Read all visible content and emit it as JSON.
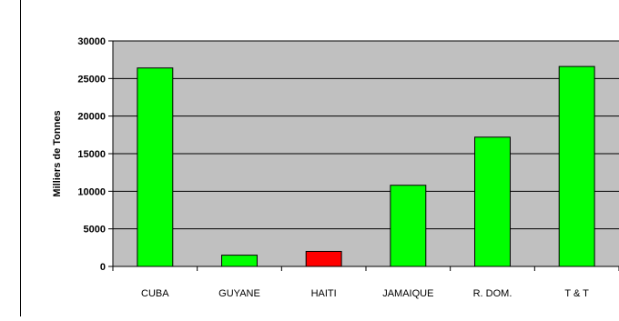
{
  "chart_data": {
    "type": "bar",
    "title": "",
    "xlabel": "",
    "ylabel": "Milliers de Tonnes",
    "categories": [
      "CUBA",
      "GUYANE",
      "HAITI",
      "JAMAIQUE",
      "R. DOM.",
      "T & T"
    ],
    "values": [
      26400,
      1500,
      2000,
      10800,
      17200,
      26600
    ],
    "bar_colors": [
      "#00ff00",
      "#00ff00",
      "#ff0000",
      "#00ff00",
      "#00ff00",
      "#00ff00"
    ],
    "ylim": [
      0,
      30000
    ],
    "yticks": [
      0,
      5000,
      10000,
      15000,
      20000,
      25000,
      30000
    ],
    "grid": true,
    "plot_background": "#c0c0c0",
    "legend": "none"
  }
}
